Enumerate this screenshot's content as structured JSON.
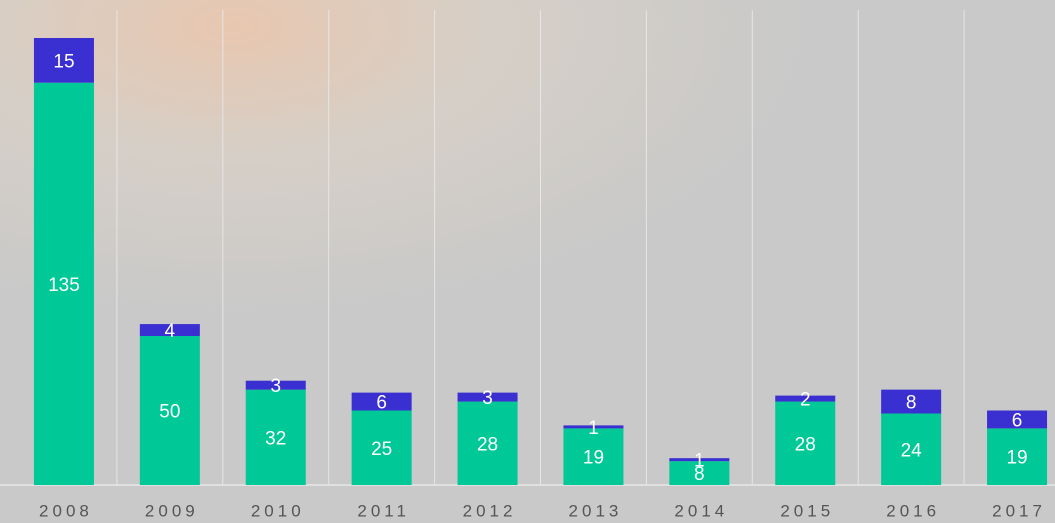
{
  "chart_data": {
    "type": "stacked-bar",
    "categories": [
      "2008",
      "2009",
      "2010",
      "2011",
      "2012",
      "2013",
      "2014",
      "2015",
      "2016",
      "2017"
    ],
    "series": [
      {
        "color": "#00c896",
        "values": [
          135,
          50,
          32,
          25,
          28,
          19,
          8,
          28,
          24,
          19
        ]
      },
      {
        "color": "#3a2fd0",
        "values": [
          15,
          4,
          3,
          6,
          3,
          1,
          1,
          2,
          8,
          6
        ]
      }
    ],
    "grid": true
  }
}
